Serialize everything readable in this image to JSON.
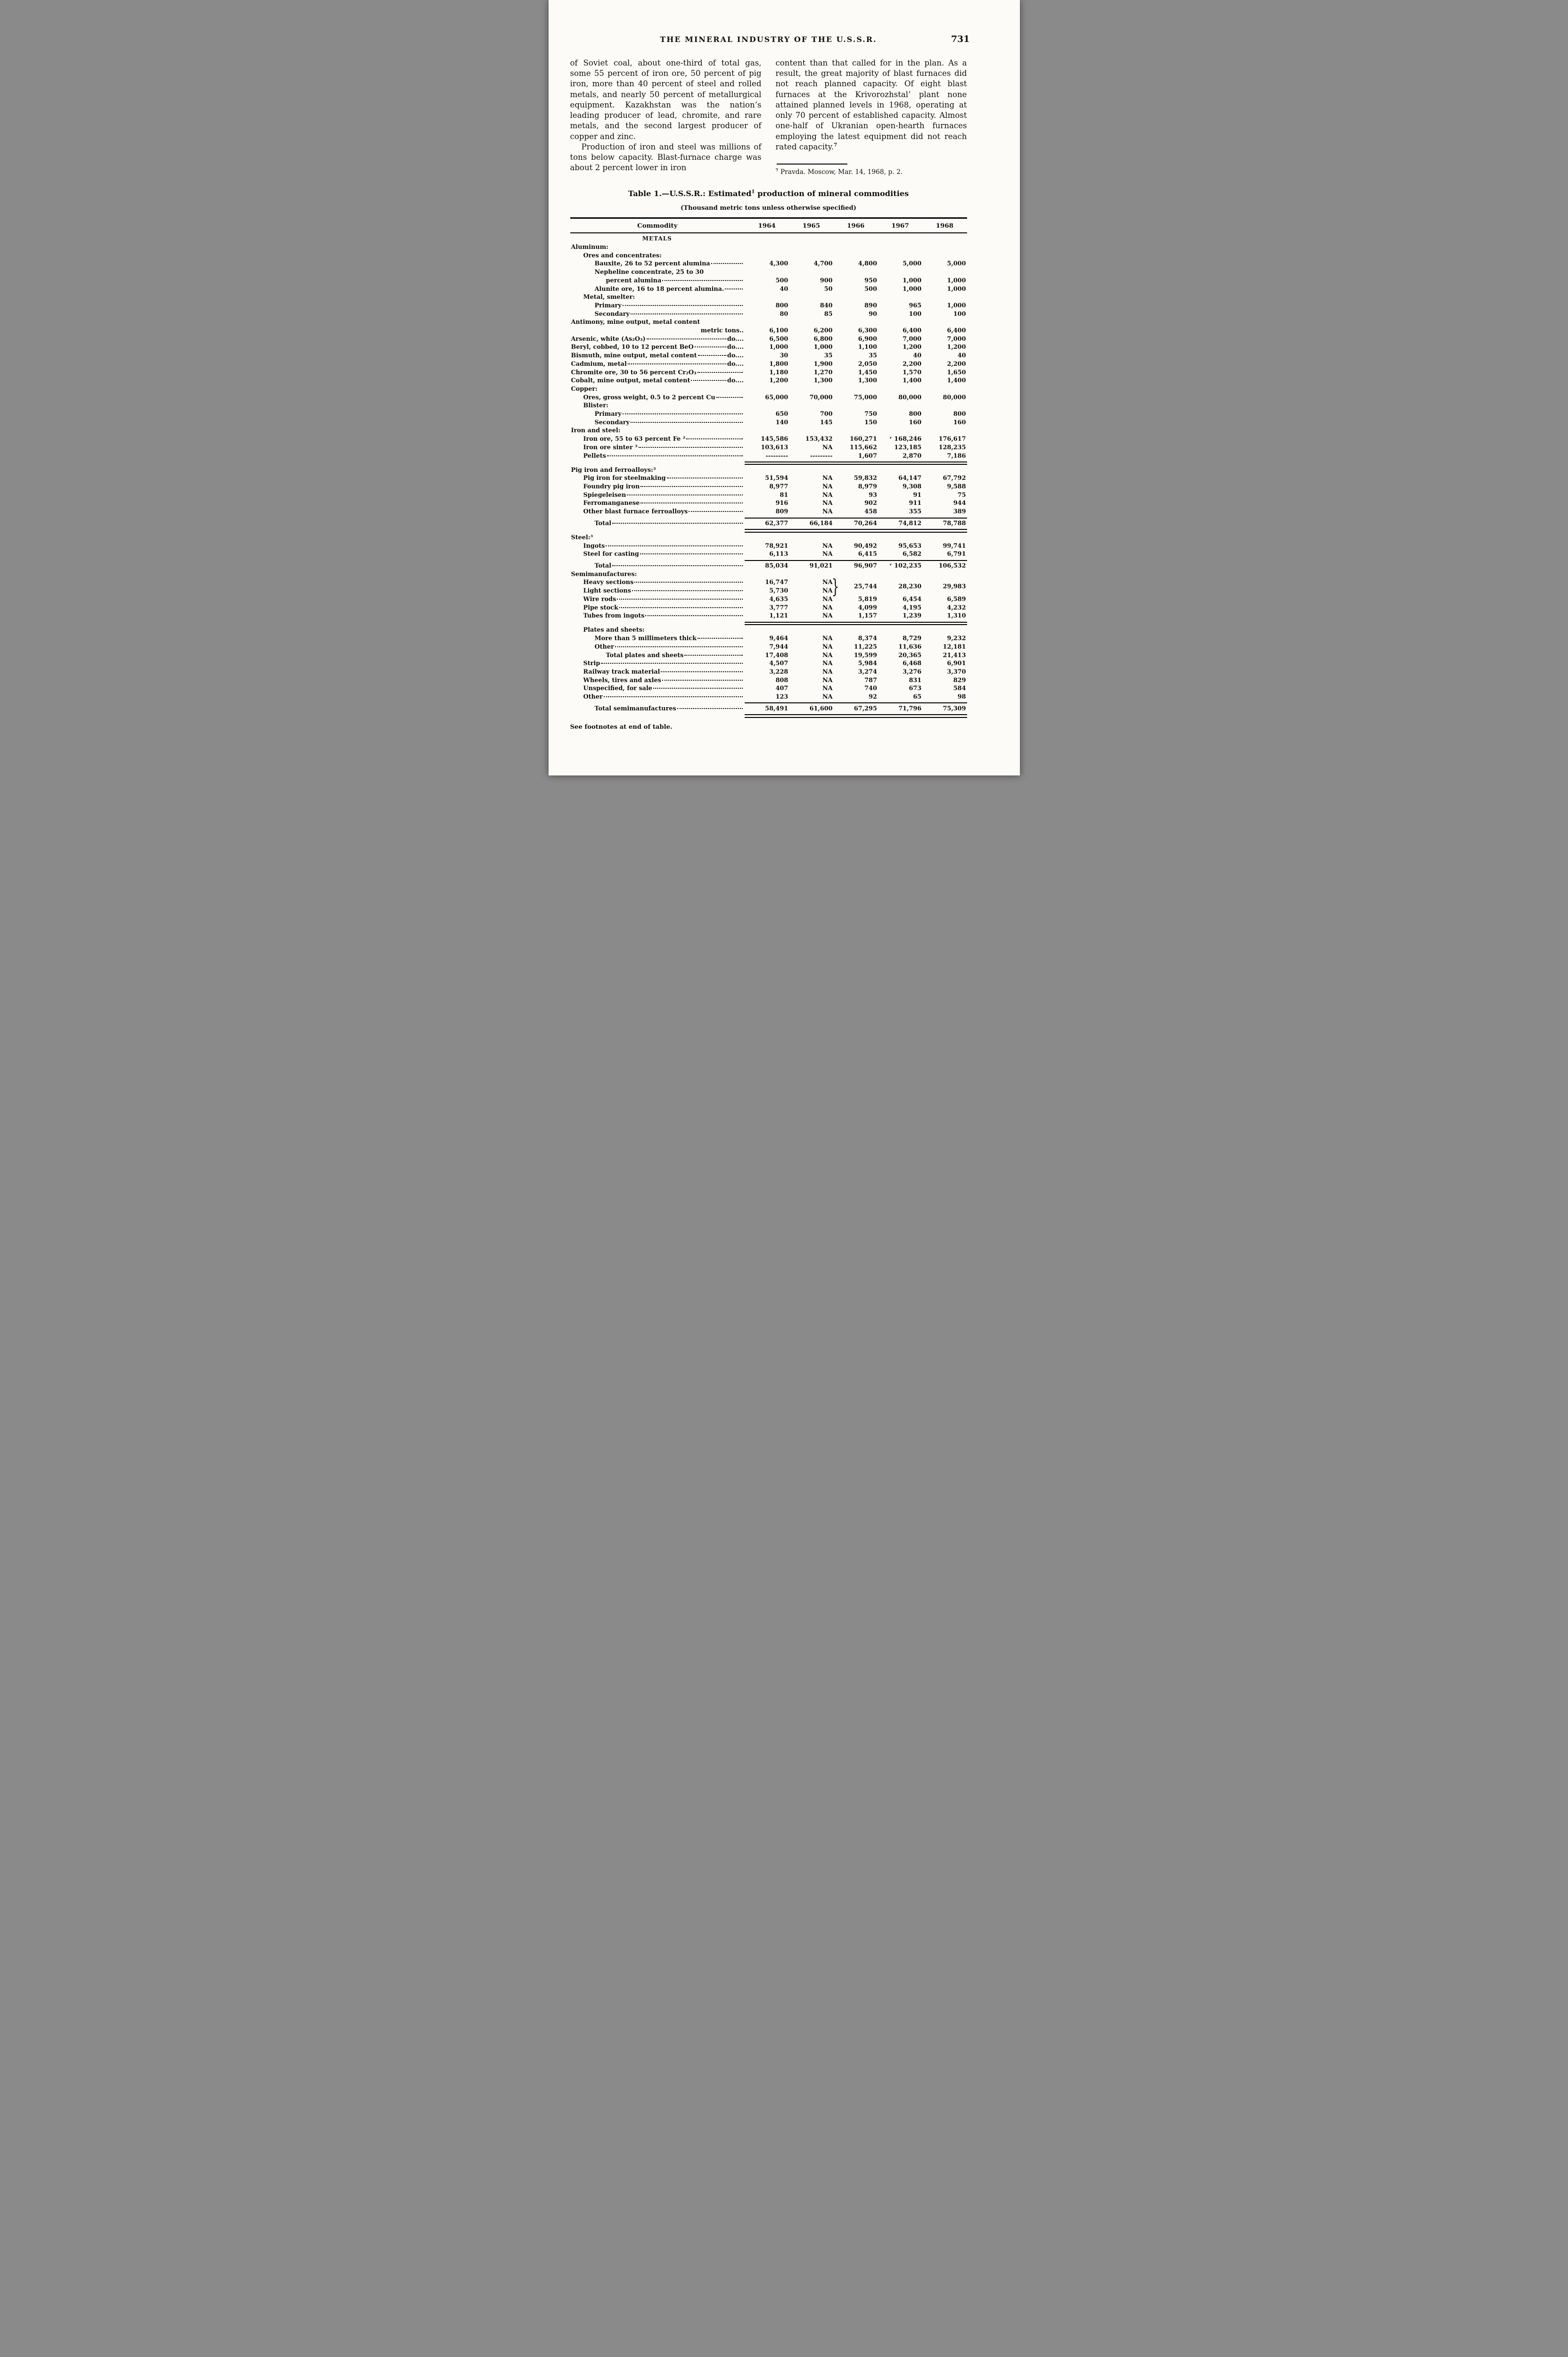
{
  "page": {
    "header": {
      "title": "THE MINERAL INDUSTRY OF THE U.S.S.R.",
      "page_number": "731"
    },
    "columns": {
      "left": {
        "p1": "of Soviet coal, about one-third of total gas, some 55 percent of iron ore, 50 percent of pig iron, more than 40 percent of steel and rolled metals, and nearly 50 percent of metallurgical equipment. Kazakhstan was the nation’s leading producer of lead, chromite, and rare metals, and the second largest producer of copper and zinc.",
        "p2": "Production of iron and steel was millions of tons below capacity. Blast-furnace charge was about 2 percent lower in iron"
      },
      "right": {
        "p1": "content than that called for in the plan. As a result, the great majority of blast furnaces did not reach planned capacity. Of eight blast furnaces at the Krivorozhstal’ plant none attained planned levels in 1968, operating at only 70 percent of established capacity. Almost one-half of Ukranian open-hearth furnaces employing the latest equipment did not reach rated capacity.",
        "p1_sup": "7",
        "footnote_sup": "7",
        "footnote_text": "Pravda. Moscow, Mar. 14, 1968, p. 2."
      }
    },
    "table": {
      "title_pre": "Table 1.—U.S.S.R.: Estimated",
      "title_sup": "1",
      "title_post": " production of mineral commodities",
      "subtitle": "(Thousand metric tons unless otherwise specified)",
      "col_header_label": "Commodity",
      "years": [
        "1964",
        "1965",
        "1966",
        "1967",
        "1968"
      ],
      "metals_header": "METALS",
      "brace": "}",
      "footer_note": "See footnotes at end of table.",
      "rows": [
        {
          "type": "section",
          "label": "Aluminum:",
          "indent": 0
        },
        {
          "type": "section",
          "label": "Ores and concentrates:",
          "indent": 1
        },
        {
          "type": "data",
          "label": "Bauxite, 26 to 52 percent alumina",
          "indent": 2,
          "unit": "",
          "values": [
            "4,300",
            "4,700",
            "4,800",
            "5,000",
            "5,000"
          ]
        },
        {
          "type": "label",
          "label": "Nepheline concentrate, 25 to 30",
          "indent": 2
        },
        {
          "type": "data",
          "label": "percent alumina",
          "indent": 3,
          "unit": "",
          "values": [
            "500",
            "900",
            "950",
            "1,000",
            "1,000"
          ]
        },
        {
          "type": "data",
          "label": "Alunite ore, 16 to 18 percent alumina.",
          "indent": 2,
          "unit": "",
          "values": [
            "40",
            "50",
            "500",
            "1,000",
            "1,000"
          ]
        },
        {
          "type": "section",
          "label": "Metal, smelter:",
          "indent": 1
        },
        {
          "type": "data",
          "label": "Primary",
          "indent": 2,
          "unit": "",
          "values": [
            "800",
            "840",
            "890",
            "965",
            "1,000"
          ]
        },
        {
          "type": "data",
          "label": "Secondary",
          "indent": 2,
          "unit": "",
          "values": [
            "80",
            "85",
            "90",
            "100",
            "100"
          ]
        },
        {
          "type": "label",
          "label": "Antimony, mine output, metal content",
          "indent": 0
        },
        {
          "type": "unitrow",
          "unit": "metric tons..",
          "values": [
            "6,100",
            "6,200",
            "6,300",
            "6,400",
            "6,400"
          ]
        },
        {
          "type": "data",
          "label": "Arsenic, white (As₂O₃)",
          "indent": 0,
          "unit": "do....",
          "values": [
            "6,500",
            "6,800",
            "6,900",
            "7,000",
            "7,000"
          ]
        },
        {
          "type": "data",
          "label": "Beryl, cobbed, 10 to 12 percent BeO",
          "indent": 0,
          "unit": "do....",
          "values": [
            "1,000",
            "1,000",
            "1,100",
            "1,200",
            "1,200"
          ]
        },
        {
          "type": "data",
          "label": "Bismuth, mine output, metal content",
          "indent": 0,
          "unit": "do....",
          "values": [
            "30",
            "35",
            "35",
            "40",
            "40"
          ]
        },
        {
          "type": "data",
          "label": "Cadmium, metal",
          "indent": 0,
          "unit": "do....",
          "values": [
            "1,800",
            "1,900",
            "2,050",
            "2,200",
            "2,200"
          ]
        },
        {
          "type": "data",
          "label": "Chromite ore, 30 to 56 percent Cr₂O₃",
          "indent": 0,
          "unit": "",
          "values": [
            "1,180",
            "1,270",
            "1,450",
            "1,570",
            "1,650"
          ]
        },
        {
          "type": "data",
          "label": "Cobalt, mine output, metal content",
          "indent": 0,
          "unit": "do....",
          "values": [
            "1,200",
            "1,300",
            "1,300",
            "1,400",
            "1,400"
          ]
        },
        {
          "type": "section",
          "label": "Copper:",
          "indent": 0
        },
        {
          "type": "data",
          "label": "Ores, gross weight, 0.5 to 2 percent Cu",
          "indent": 1,
          "unit": "",
          "values": [
            "65,000",
            "70,000",
            "75,000",
            "80,000",
            "80,000"
          ]
        },
        {
          "type": "section",
          "label": "Blister:",
          "indent": 1
        },
        {
          "type": "data",
          "label": "Primary",
          "indent": 2,
          "unit": "",
          "values": [
            "650",
            "700",
            "750",
            "800",
            "800"
          ]
        },
        {
          "type": "data",
          "label": "Secondary",
          "indent": 2,
          "unit": "",
          "values": [
            "140",
            "145",
            "150",
            "160",
            "160"
          ]
        },
        {
          "type": "section",
          "label": "Iron and steel:",
          "indent": 0
        },
        {
          "type": "data",
          "label": "Iron ore, 55 to 63 percent Fe ²",
          "indent": 1,
          "unit": "",
          "values": [
            "145,586",
            "153,432",
            "160,271",
            "ʳ 168,246",
            "176,617"
          ]
        },
        {
          "type": "data",
          "label": "Iron ore sinter ³",
          "indent": 1,
          "unit": "",
          "values": [
            "103,613",
            "NA",
            "115,662",
            "123,185",
            "128,235"
          ]
        },
        {
          "type": "data",
          "label": "Pellets",
          "indent": 1,
          "unit": "",
          "values": [
            "---------",
            "---------",
            "1,607",
            "2,870",
            "7,186"
          ]
        },
        {
          "type": "rule",
          "double": true
        },
        {
          "type": "section",
          "label": "Pig iron and ferroalloys:³",
          "indent": 0
        },
        {
          "type": "data",
          "label": "Pig iron for steelmaking",
          "indent": 1,
          "unit": "",
          "values": [
            "51,594",
            "NA",
            "59,832",
            "64,147",
            "67,792"
          ]
        },
        {
          "type": "data",
          "label": "Foundry pig iron",
          "indent": 1,
          "unit": "",
          "values": [
            "8,977",
            "NA",
            "8,979",
            "9,308",
            "9,588"
          ]
        },
        {
          "type": "data",
          "label": "Spiegeleisen",
          "indent": 1,
          "unit": "",
          "values": [
            "81",
            "NA",
            "93",
            "91",
            "75"
          ]
        },
        {
          "type": "data",
          "label": "Ferromanganese",
          "indent": 1,
          "unit": "",
          "values": [
            "916",
            "NA",
            "902",
            "911",
            "944"
          ]
        },
        {
          "type": "data",
          "label": "Other blast furnace ferroalloys",
          "indent": 1,
          "unit": "",
          "values": [
            "809",
            "NA",
            "458",
            "355",
            "389"
          ]
        },
        {
          "type": "rule",
          "double": false
        },
        {
          "type": "total",
          "label": "Total",
          "indent": 2,
          "values": [
            "62,377",
            "66,184",
            "70,264",
            "74,812",
            "78,788"
          ]
        },
        {
          "type": "rule",
          "double": true
        },
        {
          "type": "section",
          "label": "Steel:³",
          "indent": 0
        },
        {
          "type": "data",
          "label": "Ingots",
          "indent": 1,
          "unit": "",
          "values": [
            "78,921",
            "NA",
            "90,492",
            "95,653",
            "99,741"
          ]
        },
        {
          "type": "data",
          "label": "Steel for casting",
          "indent": 1,
          "unit": "",
          "values": [
            "6,113",
            "NA",
            "6,415",
            "6,582",
            "6,791"
          ]
        },
        {
          "type": "rule",
          "double": false
        },
        {
          "type": "total",
          "label": "Total",
          "indent": 2,
          "values": [
            "85,034",
            "91,021",
            "96,907",
            "ʳ 102,235",
            "106,532"
          ]
        },
        {
          "type": "section",
          "label": "Semimanufactures:",
          "indent": 0
        },
        {
          "type": "pair",
          "top": {
            "label": "Heavy sections",
            "indent": 1,
            "v0": "16,747",
            "v1": "NA"
          },
          "bottom": {
            "label": "Light sections",
            "indent": 1,
            "v0": "5,730",
            "v1": "NA"
          },
          "merged": [
            "25,744",
            "28,230",
            "29,983"
          ]
        },
        {
          "type": "data",
          "label": "Wire rods",
          "indent": 1,
          "unit": "",
          "values": [
            "4,635",
            "NA",
            "5,819",
            "6,454",
            "6,589"
          ]
        },
        {
          "type": "data",
          "label": "Pipe stock",
          "indent": 1,
          "unit": "",
          "values": [
            "3,777",
            "NA",
            "4,099",
            "4,195",
            "4,232"
          ]
        },
        {
          "type": "data",
          "label": "Tubes from ingots",
          "indent": 1,
          "unit": "",
          "values": [
            "1,121",
            "NA",
            "1,157",
            "1,239",
            "1,310"
          ]
        },
        {
          "type": "rule",
          "double": true
        },
        {
          "type": "section",
          "label": "Plates and sheets:",
          "indent": 1
        },
        {
          "type": "data",
          "label": "More than 5 millimeters thick",
          "indent": 2,
          "unit": "",
          "values": [
            "9,464",
            "NA",
            "8,374",
            "8,729",
            "9,232"
          ]
        },
        {
          "type": "data",
          "label": "Other",
          "indent": 2,
          "unit": "",
          "values": [
            "7,944",
            "NA",
            "11,225",
            "11,636",
            "12,181"
          ]
        },
        {
          "type": "total",
          "label": "Total plates and sheets",
          "indent": 3,
          "values": [
            "17,408",
            "NA",
            "19,599",
            "20,365",
            "21,413"
          ]
        },
        {
          "type": "data",
          "label": "Strip",
          "indent": 1,
          "unit": "",
          "values": [
            "4,507",
            "NA",
            "5,984",
            "6,468",
            "6,901"
          ]
        },
        {
          "type": "data",
          "label": "Railway track material",
          "indent": 1,
          "unit": "",
          "values": [
            "3,228",
            "NA",
            "3,274",
            "3,276",
            "3,370"
          ]
        },
        {
          "type": "data",
          "label": "Wheels, tires and axles",
          "indent": 1,
          "unit": "",
          "values": [
            "808",
            "NA",
            "787",
            "831",
            "829"
          ]
        },
        {
          "type": "data",
          "label": "Unspecified, for sale",
          "indent": 1,
          "unit": "",
          "values": [
            "407",
            "NA",
            "740",
            "673",
            "584"
          ]
        },
        {
          "type": "data",
          "label": "Other",
          "indent": 1,
          "unit": "",
          "values": [
            "123",
            "NA",
            "92",
            "65",
            "98"
          ]
        },
        {
          "type": "rule",
          "double": false
        },
        {
          "type": "total",
          "label": "Total semimanufactures",
          "indent": 2,
          "values": [
            "58,491",
            "61,600",
            "67,295",
            "71,796",
            "75,309"
          ]
        },
        {
          "type": "rule",
          "double": true
        }
      ]
    }
  }
}
